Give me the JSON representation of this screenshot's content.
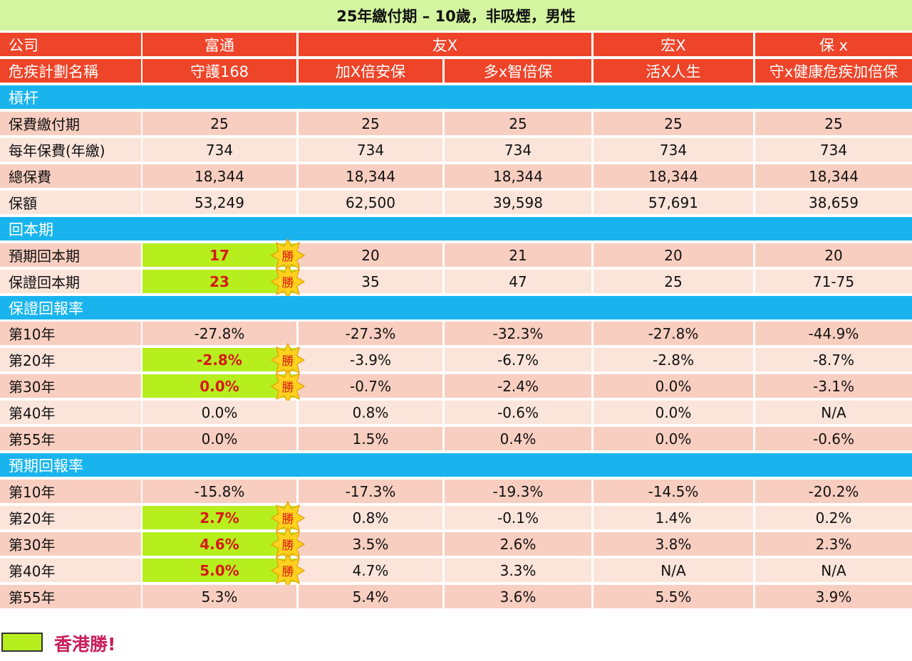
{
  "title": "25年繳付期 – 10歲，非吸煙，男性",
  "colors": {
    "title_bg": "#d4f5a0",
    "header_bg": "#ee4429",
    "section_bg": "#19b4ee",
    "row_dark": "#f8cec0",
    "row_light": "#fbe4da",
    "win_bg": "#b6ee1e",
    "win_text": "#d71818",
    "star_fill": "#ffd21e",
    "legend_text": "#c81e5a"
  },
  "companies": {
    "label": "公司",
    "items": [
      "富通",
      "友X",
      "宏X",
      "保 x"
    ]
  },
  "plans": {
    "label": "危疾計劃名稱",
    "items": [
      "守護168",
      "加X倍安保",
      "多x智倍保",
      "活X人生",
      "守x健康危疾加倍保"
    ]
  },
  "win_badge": "勝",
  "sections": [
    {
      "title": "槓杆",
      "rows": [
        {
          "label": "保費繳付期",
          "values": [
            "25",
            "25",
            "25",
            "25",
            "25"
          ],
          "win": false
        },
        {
          "label": "每年保費(年繳)",
          "values": [
            "734",
            "734",
            "734",
            "734",
            "734"
          ],
          "win": false
        },
        {
          "label": "總保費",
          "values": [
            "18,344",
            "18,344",
            "18,344",
            "18,344",
            "18,344"
          ],
          "win": false
        },
        {
          "label": "保額",
          "values": [
            "53,249",
            "62,500",
            "39,598",
            "57,691",
            "38,659"
          ],
          "win": false
        }
      ]
    },
    {
      "title": "回本期",
      "rows": [
        {
          "label": "預期回本期",
          "values": [
            "17",
            "20",
            "21",
            "20",
            "20"
          ],
          "win": true
        },
        {
          "label": "保證回本期",
          "values": [
            "23",
            "35",
            "47",
            "25",
            "71-75"
          ],
          "win": true
        }
      ]
    },
    {
      "title": "保證回報率",
      "rows": [
        {
          "label": "第10年",
          "values": [
            "-27.8%",
            "-27.3%",
            "-32.3%",
            "-27.8%",
            "-44.9%"
          ],
          "win": false
        },
        {
          "label": "第20年",
          "values": [
            "-2.8%",
            "-3.9%",
            "-6.7%",
            "-2.8%",
            "-8.7%"
          ],
          "win": true
        },
        {
          "label": "第30年",
          "values": [
            "0.0%",
            "-0.7%",
            "-2.4%",
            "0.0%",
            "-3.1%"
          ],
          "win": true
        },
        {
          "label": "第40年",
          "values": [
            "0.0%",
            "0.8%",
            "-0.6%",
            "0.0%",
            "N/A"
          ],
          "win": false
        },
        {
          "label": "第55年",
          "values": [
            "0.0%",
            "1.5%",
            "0.4%",
            "0.0%",
            "-0.6%"
          ],
          "win": false
        }
      ]
    },
    {
      "title": "預期回報率",
      "rows": [
        {
          "label": "第10年",
          "values": [
            "-15.8%",
            "-17.3%",
            "-19.3%",
            "-14.5%",
            "-20.2%"
          ],
          "win": false
        },
        {
          "label": "第20年",
          "values": [
            "2.7%",
            "0.8%",
            "-0.1%",
            "1.4%",
            "0.2%"
          ],
          "win": true
        },
        {
          "label": "第30年",
          "values": [
            "4.6%",
            "3.5%",
            "2.6%",
            "3.8%",
            "2.3%"
          ],
          "win": true
        },
        {
          "label": "第40年",
          "values": [
            "5.0%",
            "4.7%",
            "3.3%",
            "N/A",
            "N/A"
          ],
          "win": true
        },
        {
          "label": "第55年",
          "values": [
            "5.3%",
            "5.4%",
            "3.6%",
            "5.5%",
            "3.9%"
          ],
          "win": false
        }
      ]
    }
  ],
  "legend": {
    "label": "香港勝!"
  }
}
